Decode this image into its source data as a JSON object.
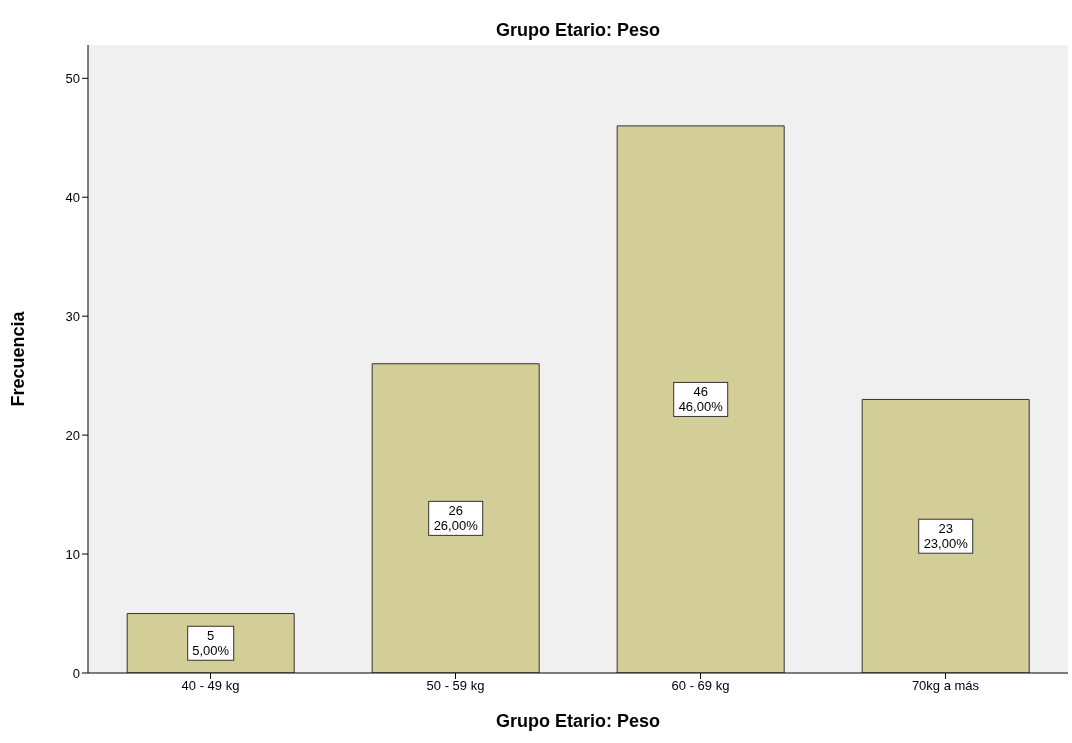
{
  "chart_data": {
    "type": "bar",
    "title": "Grupo Etario: Peso",
    "xlabel": "Grupo Etario: Peso",
    "ylabel": "Frecuencia",
    "categories": [
      "40 - 49 kg",
      "50 - 59 kg",
      "60 - 69 kg",
      "70kg a más"
    ],
    "values": [
      5,
      26,
      46,
      23
    ],
    "color": "#d3ce97",
    "value_labels": [
      "5\n5,00%",
      "26\n26,00%",
      "46\n46,00%",
      "23\n23,00%"
    ],
    "ylim": [
      0,
      52.8
    ],
    "yticks": [
      0,
      10,
      20,
      30,
      40,
      50
    ],
    "grid": false
  }
}
